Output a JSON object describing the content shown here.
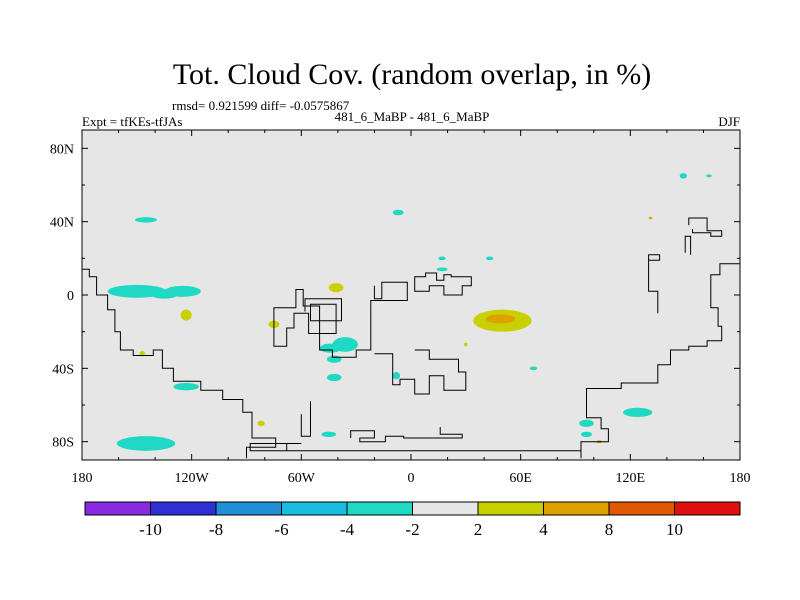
{
  "chart_data": {
    "type": "heatmap",
    "title": "Tot. Cloud Cov. (random overlap, in %)",
    "stats": "rmsd= 0.921599 diff= -0.0575867",
    "left_label": "Expt = tfKEs-tfJAs",
    "center_label": "481_6_MaBP - 481_6_MaBP",
    "right_label": "DJF",
    "xlim": [
      -180,
      180
    ],
    "ylim": [
      -90,
      90
    ],
    "x_ticks": [
      {
        "value": -180,
        "label": "180"
      },
      {
        "value": -120,
        "label": "120W"
      },
      {
        "value": -60,
        "label": "60W"
      },
      {
        "value": 0,
        "label": "0"
      },
      {
        "value": 60,
        "label": "60E"
      },
      {
        "value": 120,
        "label": "120E"
      },
      {
        "value": 180,
        "label": "180"
      }
    ],
    "y_ticks": [
      {
        "value": 80,
        "label": "80N"
      },
      {
        "value": 40,
        "label": "40N"
      },
      {
        "value": 0,
        "label": "0"
      },
      {
        "value": -40,
        "label": "40S"
      },
      {
        "value": -80,
        "label": "80S"
      }
    ],
    "background_color": "#e6e6e6",
    "coastline_color": "#000000",
    "colorbar": {
      "levels": [
        "-10",
        "-8",
        "-6",
        "-4",
        "-2",
        "2",
        "4",
        "8",
        "10"
      ],
      "colors": [
        "#8a2be2",
        "#2f2fd6",
        "#1f8fd8",
        "#19bde0",
        "#1fd9c4",
        "#e6e6e6",
        "#c8d000",
        "#e0a000",
        "#e05800",
        "#e01010"
      ]
    },
    "anomalies": [
      {
        "lon": -145,
        "lat": 41,
        "rx": 6,
        "ry": 1.5,
        "level": "-4 to -2"
      },
      {
        "lon": -7,
        "lat": 45,
        "rx": 3,
        "ry": 1.5,
        "level": "-4 to -2"
      },
      {
        "lon": -150,
        "lat": 2,
        "rx": 16,
        "ry": 3.5,
        "level": "-4 to -2"
      },
      {
        "lon": -125,
        "lat": 2,
        "rx": 10,
        "ry": 3,
        "level": "-4 to -2"
      },
      {
        "lon": -123,
        "lat": -50,
        "rx": 7,
        "ry": 2,
        "level": "-4 to -2"
      },
      {
        "lon": -145,
        "lat": -81,
        "rx": 16,
        "ry": 4,
        "level": "-4 to -2"
      },
      {
        "lon": -36,
        "lat": -27,
        "rx": 7,
        "ry": 4,
        "level": "-4 to -2"
      },
      {
        "lon": -44,
        "lat": -29,
        "rx": 6,
        "ry": 2.5,
        "level": "-4 to -2"
      },
      {
        "lon": -42,
        "lat": -35,
        "rx": 4,
        "ry": 2,
        "level": "-4 to -2"
      },
      {
        "lon": -42,
        "lat": -45,
        "rx": 4,
        "ry": 2,
        "level": "-4 to -2"
      },
      {
        "lon": -45,
        "lat": -76,
        "rx": 4,
        "ry": 1.5,
        "level": "-4 to -2"
      },
      {
        "lon": -8,
        "lat": -44,
        "rx": 2,
        "ry": 2,
        "level": "-4 to -2"
      },
      {
        "lon": 17,
        "lat": 14,
        "rx": 3,
        "ry": 1,
        "level": "-4 to -2"
      },
      {
        "lon": 43,
        "lat": 20,
        "rx": 2,
        "ry": 1,
        "level": "-4 to -2"
      },
      {
        "lon": 149,
        "lat": 65,
        "rx": 2,
        "ry": 1.5,
        "level": "-4 to -2"
      },
      {
        "lon": 163,
        "lat": 65,
        "rx": 1.5,
        "ry": 0.8,
        "level": "-4 to -2"
      },
      {
        "lon": 96,
        "lat": -70,
        "rx": 4,
        "ry": 2,
        "level": "-4 to -2"
      },
      {
        "lon": 96,
        "lat": -76,
        "rx": 3,
        "ry": 1.5,
        "level": "-4 to -2"
      },
      {
        "lon": 124,
        "lat": -64,
        "rx": 8,
        "ry": 2.5,
        "level": "-4 to -2"
      },
      {
        "lon": 67,
        "lat": -40,
        "rx": 2,
        "ry": 1,
        "level": "-4 to -2"
      },
      {
        "lon": -135,
        "lat": 0,
        "rx": 7,
        "ry": 2,
        "level": "-4 to -2"
      },
      {
        "lon": 17,
        "lat": 20,
        "rx": 2,
        "ry": 1,
        "level": "-4 to -2"
      },
      {
        "lon": 50,
        "lat": -14,
        "rx": 16,
        "ry": 6,
        "level": "2 to 4"
      },
      {
        "lon": 49,
        "lat": -13,
        "rx": 8,
        "ry": 2.5,
        "level": "4 to 8"
      },
      {
        "lon": -41,
        "lat": 4,
        "rx": 4,
        "ry": 2.5,
        "level": "2 to 4"
      },
      {
        "lon": -75,
        "lat": -16,
        "rx": 3,
        "ry": 2,
        "level": "2 to 4"
      },
      {
        "lon": -123,
        "lat": -11,
        "rx": 3,
        "ry": 3,
        "level": "2 to 4"
      },
      {
        "lon": -82,
        "lat": -70,
        "rx": 2,
        "ry": 1.5,
        "level": "2 to 4"
      },
      {
        "lon": 30,
        "lat": -27,
        "rx": 1,
        "ry": 1,
        "level": "2 to 4"
      },
      {
        "lon": 103,
        "lat": -80,
        "rx": 1.5,
        "ry": 0.8,
        "level": "4 to 8"
      },
      {
        "lon": 131,
        "lat": 42,
        "rx": 1,
        "ry": 0.6,
        "level": "4 to 8"
      },
      {
        "lon": -147,
        "lat": -32,
        "rx": 1.5,
        "ry": 1.5,
        "level": "2 to 4"
      }
    ],
    "coastlines": [
      [
        [
          -180,
          14
        ],
        [
          -176,
          14
        ],
        [
          -176,
          10
        ],
        [
          -172,
          10
        ],
        [
          -172,
          0
        ],
        [
          -166,
          0
        ],
        [
          -166,
          -8
        ],
        [
          -162,
          -8
        ],
        [
          -162,
          -20
        ],
        [
          -159,
          -20
        ],
        [
          -159,
          -30
        ],
        [
          -152,
          -30
        ],
        [
          -152,
          -33
        ],
        [
          -141,
          -33
        ],
        [
          -141,
          -30
        ],
        [
          -136,
          -30
        ],
        [
          -136,
          -40
        ],
        [
          -130,
          -40
        ],
        [
          -130,
          -47
        ],
        [
          -115,
          -47
        ],
        [
          -115,
          -52
        ],
        [
          -103,
          -52
        ],
        [
          -103,
          -57
        ],
        [
          -92,
          -57
        ],
        [
          -92,
          -64
        ],
        [
          -87,
          -64
        ],
        [
          -87,
          -78
        ],
        [
          -74,
          -78
        ],
        [
          -74,
          -83
        ],
        [
          -90,
          -83
        ],
        [
          -90,
          -89
        ]
      ],
      [
        [
          -20,
          5
        ],
        [
          -20,
          -2
        ],
        [
          -16,
          -2
        ],
        [
          -16,
          7
        ],
        [
          -2,
          7
        ],
        [
          -2,
          -3
        ],
        [
          -22,
          -3
        ],
        [
          -22,
          -30
        ],
        [
          -30,
          -30
        ],
        [
          -30,
          -34
        ],
        [
          -43,
          -34
        ],
        [
          -43,
          -30
        ],
        [
          -50,
          -30
        ],
        [
          -50,
          -6
        ],
        [
          -59,
          -6
        ],
        [
          -59,
          3
        ],
        [
          -63,
          3
        ],
        [
          -63,
          -7
        ],
        [
          -75,
          -7
        ],
        [
          -75,
          -28
        ],
        [
          -68,
          -28
        ],
        [
          -68,
          -18
        ],
        [
          -64,
          -18
        ],
        [
          -64,
          -10
        ],
        [
          -56,
          -10
        ],
        [
          -56,
          -21
        ],
        [
          -41,
          -21
        ],
        [
          -41,
          -5
        ],
        [
          -55,
          -5
        ],
        [
          -55,
          -14
        ],
        [
          -38,
          -14
        ],
        [
          -38,
          -2
        ],
        [
          -58,
          -2
        ],
        [
          -58,
          -9
        ]
      ],
      [
        [
          -55,
          -58
        ],
        [
          -55,
          -67
        ],
        [
          -55,
          -77
        ],
        [
          -60,
          -77
        ],
        [
          -60,
          -65
        ]
      ],
      [
        [
          -20,
          -32
        ],
        [
          -10,
          -32
        ],
        [
          -10,
          -38
        ],
        [
          -10,
          -49
        ],
        [
          -6,
          -49
        ],
        [
          -6,
          -46
        ],
        [
          2,
          -46
        ],
        [
          2,
          -54
        ],
        [
          10,
          -54
        ],
        [
          10,
          -44
        ],
        [
          18,
          -44
        ],
        [
          18,
          -52
        ],
        [
          30,
          -52
        ],
        [
          30,
          -42
        ],
        [
          26,
          -42
        ],
        [
          26,
          -35
        ],
        [
          10,
          -35
        ],
        [
          10,
          -30
        ],
        [
          2,
          -30
        ]
      ],
      [
        [
          -33,
          -78
        ],
        [
          -33,
          -74
        ],
        [
          -20,
          -74
        ],
        [
          -20,
          -78
        ],
        [
          -28,
          -78
        ],
        [
          -28,
          -80
        ],
        [
          -14,
          -80
        ],
        [
          -14,
          -77
        ],
        [
          -4,
          -77
        ],
        [
          -4,
          -78
        ],
        [
          28,
          -78
        ],
        [
          28,
          -76
        ],
        [
          16,
          -76
        ],
        [
          16,
          -72
        ]
      ],
      [
        [
          93,
          -89
        ],
        [
          93,
          -80
        ],
        [
          108,
          -80
        ],
        [
          108,
          -73
        ],
        [
          104,
          -73
        ],
        [
          104,
          -67
        ],
        [
          96,
          -67
        ],
        [
          96,
          -51
        ],
        [
          115,
          -51
        ],
        [
          115,
          -48
        ],
        [
          135,
          -48
        ],
        [
          135,
          -38
        ],
        [
          142,
          -38
        ],
        [
          142,
          -30
        ],
        [
          152,
          -30
        ],
        [
          152,
          -28
        ],
        [
          162,
          -28
        ],
        [
          162,
          -25
        ],
        [
          170,
          -25
        ],
        [
          170,
          -17
        ],
        [
          168,
          -17
        ],
        [
          168,
          -7
        ],
        [
          164,
          -7
        ],
        [
          164,
          11
        ],
        [
          169,
          11
        ],
        [
          169,
          17
        ],
        [
          180,
          17
        ]
      ],
      [
        [
          -68,
          -85
        ],
        [
          -68,
          -81
        ],
        [
          -60,
          -81
        ],
        [
          -88,
          -81
        ],
        [
          -88,
          -85
        ],
        [
          -68,
          -85
        ],
        [
          93,
          -85
        ],
        [
          93,
          -80
        ]
      ],
      [
        [
          130,
          4
        ],
        [
          130,
          19
        ],
        [
          136,
          19
        ],
        [
          136,
          22
        ],
        [
          130,
          22
        ],
        [
          130,
          2
        ],
        [
          135,
          2
        ],
        [
          135,
          -10
        ]
      ],
      [
        [
          150,
          23
        ],
        [
          150,
          32
        ],
        [
          153,
          32
        ],
        [
          153,
          22
        ]
      ],
      [
        [
          152,
          38
        ],
        [
          152,
          42
        ],
        [
          162,
          42
        ],
        [
          162,
          35
        ],
        [
          170,
          35
        ],
        [
          170,
          32
        ],
        [
          164,
          32
        ],
        [
          164,
          34
        ],
        [
          154,
          34
        ],
        [
          154,
          36
        ]
      ],
      [
        [
          2,
          5
        ],
        [
          2,
          10
        ],
        [
          8,
          10
        ],
        [
          8,
          12
        ],
        [
          14,
          12
        ],
        [
          14,
          8
        ],
        [
          18,
          8
        ],
        [
          18,
          11
        ],
        [
          22,
          11
        ],
        [
          22,
          10
        ],
        [
          33,
          10
        ],
        [
          33,
          5
        ],
        [
          28,
          5
        ],
        [
          28,
          0
        ],
        [
          18,
          0
        ],
        [
          18,
          5
        ],
        [
          10,
          5
        ],
        [
          10,
          2
        ],
        [
          2,
          2
        ],
        [
          2,
          5
        ]
      ]
    ]
  }
}
